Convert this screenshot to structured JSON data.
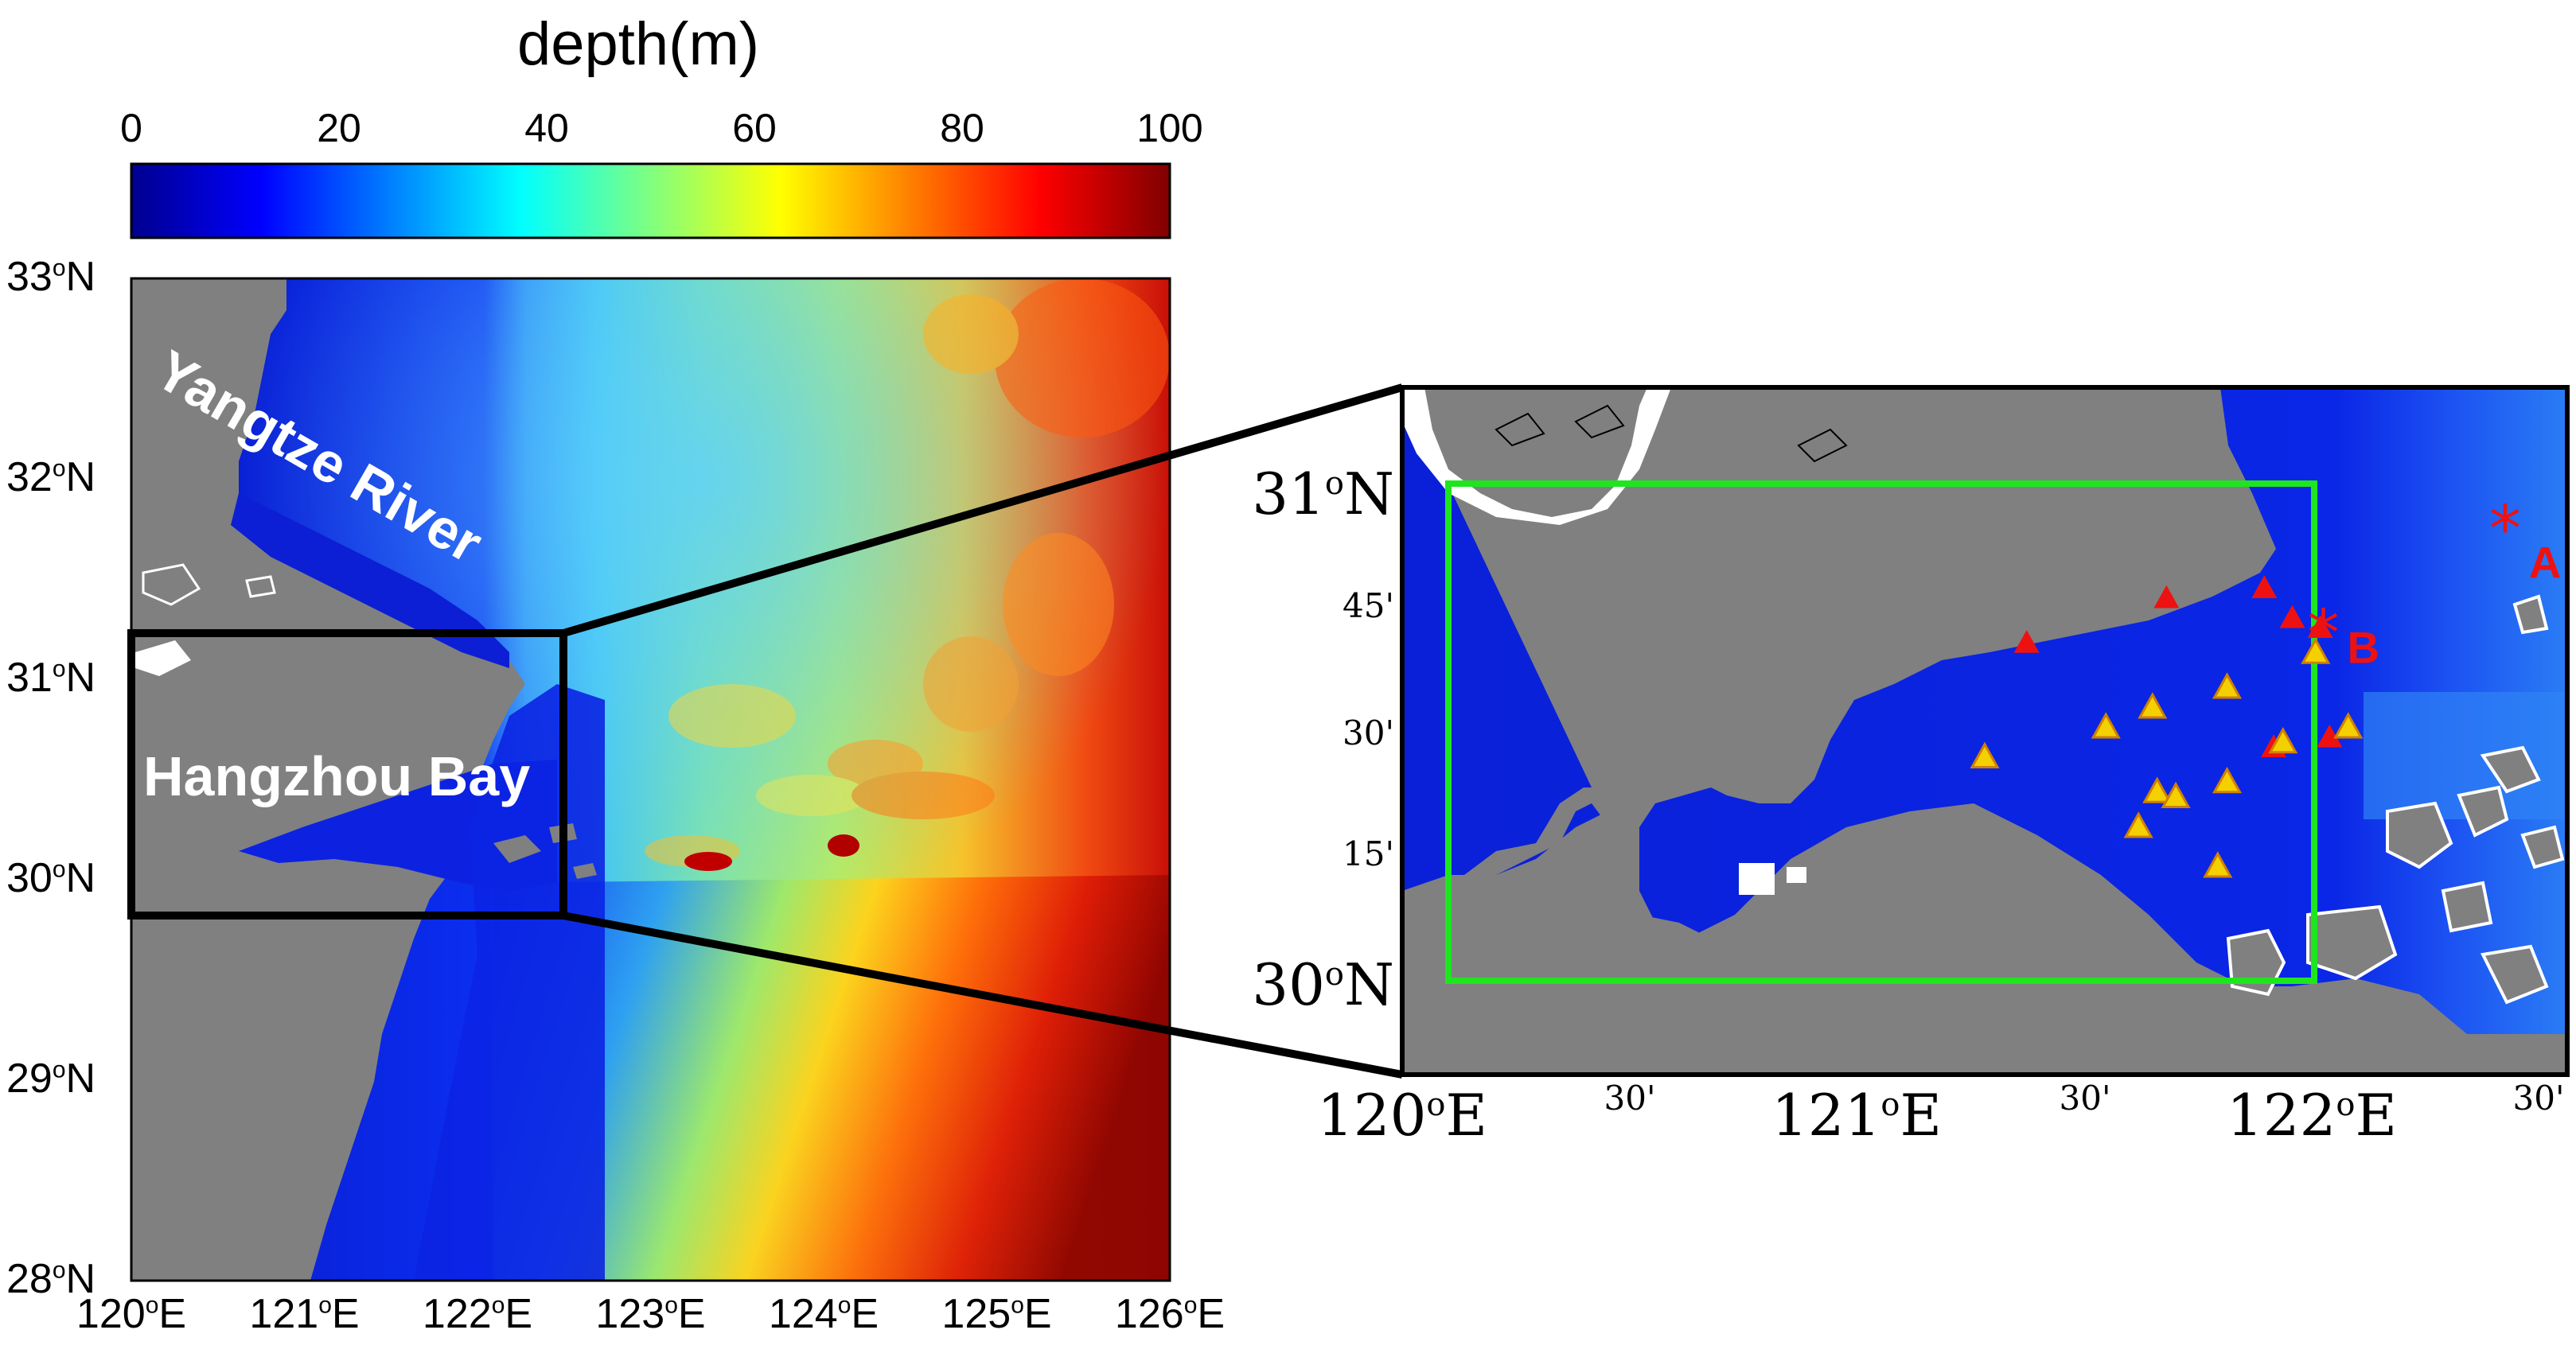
{
  "colorbar": {
    "title": "depth(m)",
    "ticks": [
      "0",
      "20",
      "40",
      "60",
      "80",
      "100"
    ],
    "range": [
      0,
      100
    ]
  },
  "left_map": {
    "lat_ticks": [
      {
        "deg": "33",
        "sup": "o",
        "hem": "N"
      },
      {
        "deg": "32",
        "sup": "o",
        "hem": "N"
      },
      {
        "deg": "31",
        "sup": "o",
        "hem": "N"
      },
      {
        "deg": "30",
        "sup": "o",
        "hem": "N"
      },
      {
        "deg": "29",
        "sup": "o",
        "hem": "N"
      },
      {
        "deg": "28",
        "sup": "o",
        "hem": "N"
      }
    ],
    "lon_ticks": [
      {
        "deg": "120",
        "sup": "o",
        "hem": "E"
      },
      {
        "deg": "121",
        "sup": "o",
        "hem": "E"
      },
      {
        "deg": "122",
        "sup": "o",
        "hem": "E"
      },
      {
        "deg": "123",
        "sup": "o",
        "hem": "E"
      },
      {
        "deg": "124",
        "sup": "o",
        "hem": "E"
      },
      {
        "deg": "125",
        "sup": "o",
        "hem": "E"
      },
      {
        "deg": "126",
        "sup": "o",
        "hem": "E"
      }
    ],
    "labels": {
      "river": "Yangtze River",
      "bay": "Hangzhou Bay"
    }
  },
  "right_map": {
    "lat_ticks": [
      {
        "text": "31",
        "sup": "o",
        "hem": "N",
        "major": true
      },
      {
        "text": "45'",
        "major": false
      },
      {
        "text": "30'",
        "major": false
      },
      {
        "text": "15'",
        "major": false
      },
      {
        "text": "30",
        "sup": "o",
        "hem": "N",
        "major": true
      }
    ],
    "lon_ticks": [
      {
        "text": "120",
        "sup": "o",
        "hem": "E",
        "major": true
      },
      {
        "text": "30'",
        "major": false
      },
      {
        "text": "121",
        "sup": "o",
        "hem": "E",
        "major": true
      },
      {
        "text": "30'",
        "major": false
      },
      {
        "text": "122",
        "sup": "o",
        "hem": "E",
        "major": true
      },
      {
        "text": "30'",
        "major": false
      }
    ],
    "stations": [
      {
        "name": "A",
        "lon": 122.37,
        "lat": 30.91
      },
      {
        "name": "B",
        "lon": 121.98,
        "lat": 30.7
      }
    ],
    "red_triangles": [
      {
        "lon": 121.34,
        "lat": 30.68
      },
      {
        "lon": 121.64,
        "lat": 30.77
      },
      {
        "lon": 121.85,
        "lat": 30.79
      },
      {
        "lon": 121.91,
        "lat": 30.73
      },
      {
        "lon": 121.97,
        "lat": 30.71
      },
      {
        "lon": 121.87,
        "lat": 30.47
      },
      {
        "lon": 121.99,
        "lat": 30.49
      }
    ],
    "yellow_triangles": [
      {
        "lon": 121.25,
        "lat": 30.45
      },
      {
        "lon": 121.51,
        "lat": 30.51
      },
      {
        "lon": 121.61,
        "lat": 30.55
      },
      {
        "lon": 121.77,
        "lat": 30.59
      },
      {
        "lon": 121.96,
        "lat": 30.66
      },
      {
        "lon": 121.89,
        "lat": 30.48
      },
      {
        "lon": 122.03,
        "lat": 30.51
      },
      {
        "lon": 121.62,
        "lat": 30.38
      },
      {
        "lon": 121.66,
        "lat": 30.37
      },
      {
        "lon": 121.77,
        "lat": 30.4
      },
      {
        "lon": 121.58,
        "lat": 30.31
      },
      {
        "lon": 121.75,
        "lat": 30.23
      }
    ]
  },
  "colors": {
    "land": "#808080",
    "box_green": "#1ee61e",
    "marker_red": "#ee1111",
    "marker_yellow": "#f5d000",
    "deep_blue": "#0a1fd6"
  }
}
